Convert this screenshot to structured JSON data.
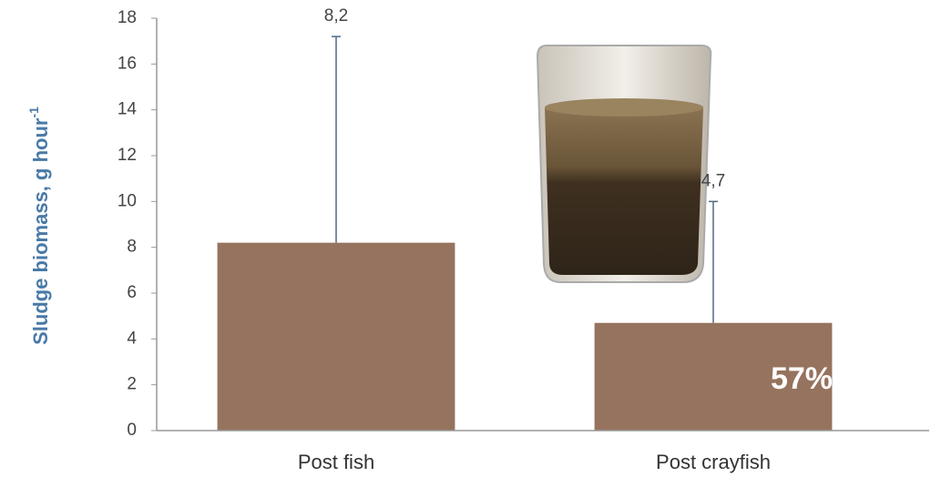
{
  "chart_data": {
    "type": "bar",
    "y_label": "Sludge biomass, g hour",
    "y_label_superscript": "-1",
    "categories": [
      "Post fish",
      "Post crayfish"
    ],
    "values": [
      8.2,
      4.7
    ],
    "value_labels": [
      "8,2",
      "4,7"
    ],
    "errors": [
      9.0,
      5.3
    ],
    "color": "#96735e",
    "error_color": "#4e6a85",
    "ylim": [
      0,
      18
    ],
    "yticks": [
      0,
      2,
      4,
      6,
      8,
      10,
      12,
      14,
      16,
      18
    ],
    "annotation": "57%"
  }
}
